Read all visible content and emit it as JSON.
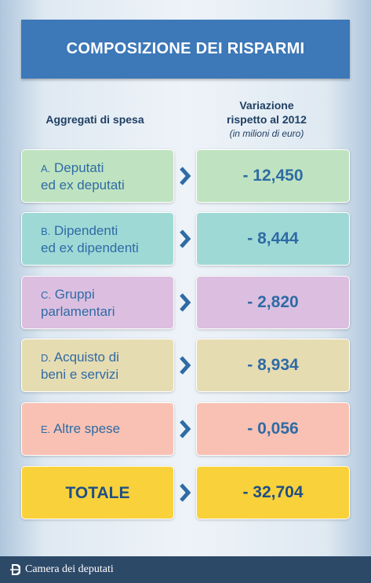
{
  "header": {
    "title": "COMPOSIZIONE DEI RISPARMI"
  },
  "columns": {
    "left": "Aggregati di spesa",
    "right": [
      "Variazione",
      "rispetto al 2012"
    ],
    "note": "(in milioni di euro)"
  },
  "rows": [
    {
      "letter": "A.",
      "lines": [
        "Deputati",
        "ed ex deputati"
      ],
      "value": "- 12,450"
    },
    {
      "letter": "B.",
      "lines": [
        "Dipendenti",
        "ed ex dipendenti"
      ],
      "value": "- 8,444"
    },
    {
      "letter": "C.",
      "lines": [
        "Gruppi",
        "parlamentari"
      ],
      "value": "- 2,820"
    },
    {
      "letter": "D.",
      "lines": [
        "Acquisto di",
        "beni e servizi"
      ],
      "value": "- 8,934"
    },
    {
      "letter": "E.",
      "lines": [
        "Altre spese"
      ],
      "value": "- 0,056"
    }
  ],
  "total": {
    "label": "TOTALE",
    "value": "- 32,704"
  },
  "footer": {
    "text": "Camera dei deputati"
  }
}
